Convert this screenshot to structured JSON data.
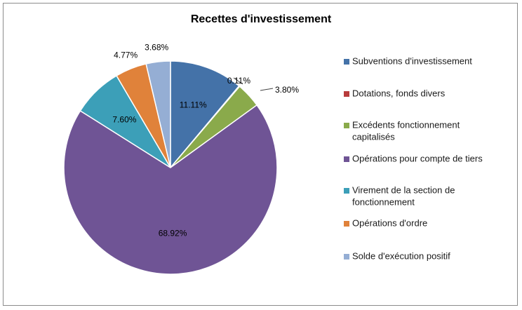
{
  "chart_data": {
    "type": "pie",
    "title": "Recettes d'investissement",
    "legend_position": "right",
    "categories": [
      "Subventions d'investissement",
      "Dotations, fonds divers",
      "Excédents fonctionnement capitalisés",
      "Opérations pour compte de tiers",
      "Virement de la section de fonctionnement",
      "Opérations d'ordre",
      "Solde d'exécution positif"
    ],
    "legend_lines": [
      [
        "Subventions d'investissement"
      ],
      [
        "Dotations, fonds divers"
      ],
      [
        "Excédents fonctionnement",
        "capitalisés"
      ],
      [
        "Opérations pour compte de tiers"
      ],
      [
        "Virement de la section de",
        "fonctionnement"
      ],
      [
        "Opérations d'ordre"
      ],
      [
        "Solde d'exécution positif"
      ]
    ],
    "values": [
      11.11,
      0.11,
      3.8,
      68.92,
      7.6,
      4.77,
      3.68
    ],
    "labels": [
      "11.11%",
      "0.11%",
      "3.80%",
      "68.92%",
      "7.60%",
      "4.77%",
      "3.68%"
    ],
    "colors": [
      "#4472a8",
      "#b83c3c",
      "#8aaa4b",
      "#6f5495",
      "#3c9fb8",
      "#e0823a",
      "#95aed4"
    ]
  }
}
